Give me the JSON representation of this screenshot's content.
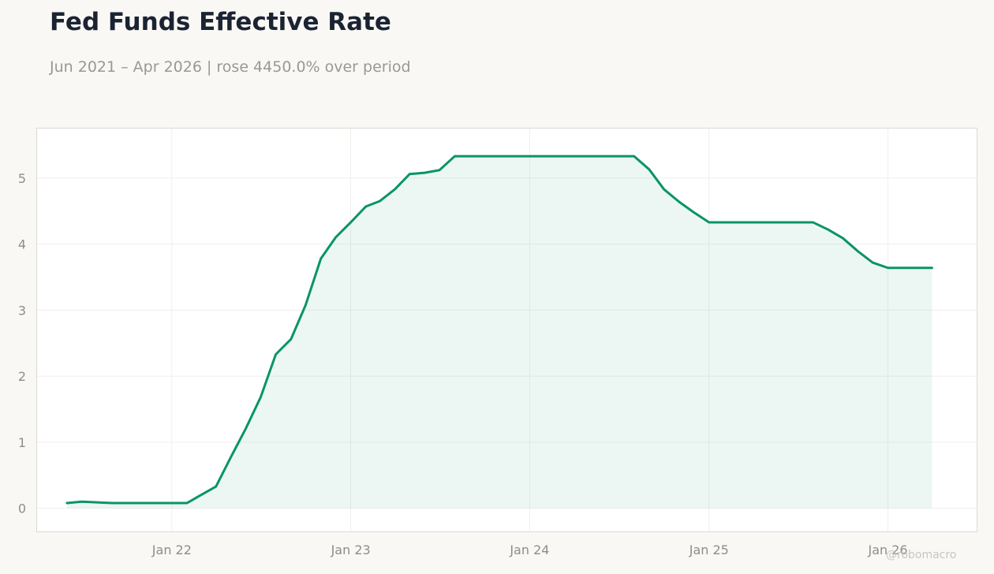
{
  "title": "Fed Funds Effective Rate",
  "subtitle": "Jun 2021 – Apr 2026 | rose 4450.0% over period",
  "watermark": "@robomacro",
  "colors": {
    "line": "#0a9466",
    "fill": "#0a9466",
    "background": "#f9f8f5",
    "plot_background": "#ffffff",
    "grid": "#f0efec",
    "frame": "#dddad3",
    "tick_text": "#8f8d88",
    "title": "#1b2333",
    "subtitle": "#9a9893"
  },
  "chart_data": {
    "type": "area",
    "title": "Fed Funds Effective Rate",
    "subtitle": "Jun 2021 – Apr 2026 | rose 4450.0% over period",
    "xlabel": "",
    "ylabel": "",
    "xlim": [
      "2021-04-01",
      "2026-07-01"
    ],
    "ylim": [
      -0.35,
      5.75
    ],
    "grid": true,
    "legend": "none",
    "x_ticks": [
      {
        "date": "2022-01-01",
        "label": "Jan 22"
      },
      {
        "date": "2023-01-01",
        "label": "Jan 23"
      },
      {
        "date": "2024-01-01",
        "label": "Jan 24"
      },
      {
        "date": "2025-01-01",
        "label": "Jan 25"
      },
      {
        "date": "2026-01-01",
        "label": "Jan 26"
      }
    ],
    "y_ticks": [
      0,
      1,
      2,
      3,
      4,
      5
    ],
    "series": [
      {
        "x": [
          "2021-06-01",
          "2021-07-01",
          "2021-08-01",
          "2021-09-01",
          "2021-10-01",
          "2021-11-01",
          "2021-12-01",
          "2022-01-01",
          "2022-02-01",
          "2022-03-01",
          "2022-04-01",
          "2022-05-01",
          "2022-06-01",
          "2022-07-01",
          "2022-08-01",
          "2022-09-01",
          "2022-10-01",
          "2022-11-01",
          "2022-12-01",
          "2023-01-01",
          "2023-02-01",
          "2023-03-01",
          "2023-04-01",
          "2023-05-01",
          "2023-06-01",
          "2023-07-01",
          "2023-08-01",
          "2023-09-01",
          "2023-10-01",
          "2023-11-01",
          "2023-12-01",
          "2024-01-01",
          "2024-02-01",
          "2024-03-01",
          "2024-04-01",
          "2024-05-01",
          "2024-06-01",
          "2024-07-01",
          "2024-08-01",
          "2024-09-01",
          "2024-10-01",
          "2024-11-01",
          "2024-12-01",
          "2025-01-01",
          "2025-02-01",
          "2025-03-01",
          "2025-04-01",
          "2025-05-01",
          "2025-06-01",
          "2025-07-01",
          "2025-08-01",
          "2025-09-01",
          "2025-10-01",
          "2025-11-01",
          "2025-12-01",
          "2026-01-01",
          "2026-02-01",
          "2026-03-01",
          "2026-04-01"
        ],
        "values": [
          0.08,
          0.1,
          0.09,
          0.08,
          0.08,
          0.08,
          0.08,
          0.08,
          0.08,
          0.2,
          0.33,
          0.77,
          1.21,
          1.68,
          2.33,
          2.56,
          3.08,
          3.78,
          4.1,
          4.33,
          4.57,
          4.65,
          4.83,
          5.06,
          5.08,
          5.12,
          5.33,
          5.33,
          5.33,
          5.33,
          5.33,
          5.33,
          5.33,
          5.33,
          5.33,
          5.33,
          5.33,
          5.33,
          5.33,
          5.13,
          4.83,
          4.64,
          4.48,
          4.33,
          4.33,
          4.33,
          4.33,
          4.33,
          4.33,
          4.33,
          4.33,
          4.22,
          4.09,
          3.89,
          3.72,
          3.64,
          3.64,
          3.64,
          3.64
        ]
      }
    ]
  }
}
